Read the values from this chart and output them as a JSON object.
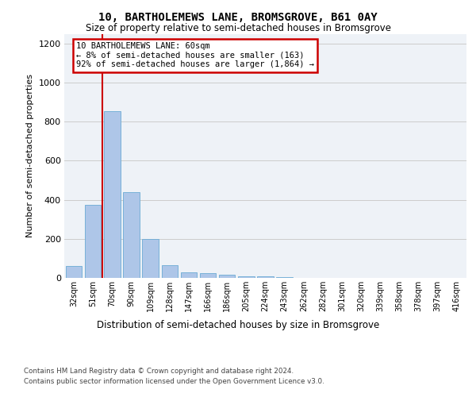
{
  "title": "10, BARTHOLEMEWS LANE, BROMSGROVE, B61 0AY",
  "subtitle": "Size of property relative to semi-detached houses in Bromsgrove",
  "xlabel": "Distribution of semi-detached houses by size in Bromsgrove",
  "ylabel": "Number of semi-detached properties",
  "categories": [
    "32sqm",
    "51sqm",
    "70sqm",
    "90sqm",
    "109sqm",
    "128sqm",
    "147sqm",
    "166sqm",
    "186sqm",
    "205sqm",
    "224sqm",
    "243sqm",
    "262sqm",
    "282sqm",
    "301sqm",
    "320sqm",
    "339sqm",
    "358sqm",
    "378sqm",
    "397sqm",
    "416sqm"
  ],
  "values": [
    60,
    375,
    855,
    440,
    200,
    65,
    30,
    25,
    15,
    10,
    10,
    5,
    0,
    0,
    0,
    0,
    0,
    0,
    0,
    0,
    0
  ],
  "bar_color": "#aec6e8",
  "bar_edgecolor": "#6aaad4",
  "vline_x": 1.5,
  "vline_color": "#cc0000",
  "annotation_title": "10 BARTHOLEMEWS LANE: 60sqm",
  "annotation_line2": "← 8% of semi-detached houses are smaller (163)",
  "annotation_line3": "92% of semi-detached houses are larger (1,864) →",
  "annotation_box_edgecolor": "#cc0000",
  "ylim": [
    0,
    1250
  ],
  "yticks": [
    0,
    200,
    400,
    600,
    800,
    1000,
    1200
  ],
  "bg_color": "#eef2f7",
  "grid_color": "#cccccc",
  "footnote1": "Contains HM Land Registry data © Crown copyright and database right 2024.",
  "footnote2": "Contains public sector information licensed under the Open Government Licence v3.0."
}
